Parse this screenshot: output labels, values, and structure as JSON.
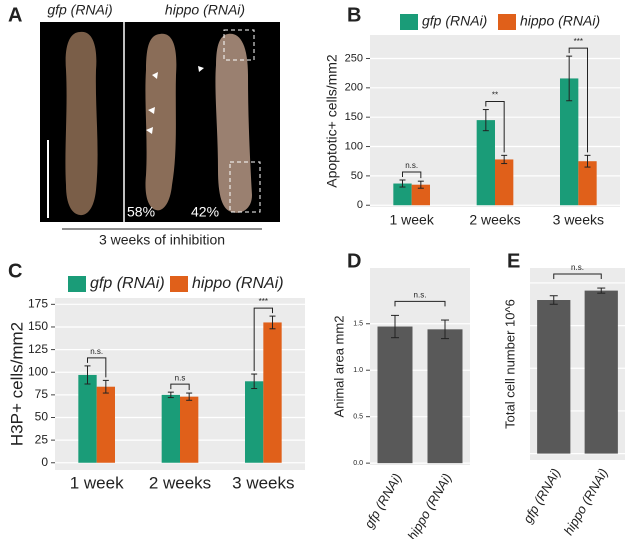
{
  "panel_a": {
    "panel_label": "A",
    "label_left": "gfp (RNAi)",
    "label_right": "hippo (RNAi)",
    "pct_left": "58%",
    "pct_right": "42%",
    "caption": "3 weeks of inhibition"
  },
  "chart_data": [
    {
      "type": "bar",
      "panel_label": "B",
      "y_label": "Apoptotic+ cells/mm2",
      "categories": [
        "1 week",
        "2 weeks",
        "3 weeks"
      ],
      "series": [
        {
          "name": "gfp (RNAi)",
          "color": "#1a9c78",
          "values": [
            37,
            145,
            216
          ],
          "errors": [
            6,
            18,
            38
          ]
        },
        {
          "name": "hippo (RNAi)",
          "color": "#e0601a",
          "values": [
            35,
            78,
            75
          ],
          "errors": [
            6,
            7,
            10
          ]
        }
      ],
      "annotations": [
        "n.s.",
        "**",
        "***"
      ],
      "ylim": [
        -3,
        290
      ],
      "yticks": [
        0,
        50,
        100,
        150,
        200,
        250
      ],
      "grid": true,
      "legend": "top"
    },
    {
      "type": "bar",
      "panel_label": "C",
      "y_label": "H3P+ cells/mm2",
      "categories": [
        "1 week",
        "2 weeks",
        "3 weeks"
      ],
      "series": [
        {
          "name": "gfp (RNAi)",
          "color": "#1a9c78",
          "values": [
            97,
            75,
            90
          ],
          "errors": [
            10,
            3,
            8
          ]
        },
        {
          "name": "hippo (RNAi)",
          "color": "#e0601a",
          "values": [
            84,
            73,
            155
          ],
          "errors": [
            7,
            4,
            7
          ]
        }
      ],
      "annotations": [
        "n.s.",
        "n.s",
        "***"
      ],
      "ylim": [
        -8,
        182
      ],
      "yticks": [
        0,
        25,
        50,
        75,
        100,
        125,
        150,
        175
      ],
      "grid": true,
      "legend": "top"
    },
    {
      "type": "bar",
      "panel_label": "D",
      "y_label": "Animal area mm2",
      "categories": [
        "gfp (RNAi)",
        "hippo (RNAi)"
      ],
      "values": [
        1.47,
        1.44
      ],
      "errors": [
        0.12,
        0.1
      ],
      "color": "#595959",
      "annotation": "n.s.",
      "ylim": [
        -0.02,
        2.1
      ],
      "yticks": [
        {
          "value": 0,
          "label": "0.0"
        },
        0.5,
        {
          "value": 1,
          "label": "1.0"
        },
        1.5
      ],
      "grid": true
    },
    {
      "type": "bar",
      "panel_label": "E",
      "y_label": "Total cell number 10^6",
      "categories": [
        "gfp (RNAi)",
        "hippo (RNAi)"
      ],
      "values": [
        3.6,
        3.82
      ],
      "errors": [
        0.1,
        0.06
      ],
      "color": "#595959",
      "annotation": "n.s.",
      "ylim": [
        -0.15,
        4.35
      ],
      "yticks": [
        0,
        1,
        2,
        3,
        4
      ],
      "show_ytick_labels": false,
      "grid": true
    }
  ]
}
